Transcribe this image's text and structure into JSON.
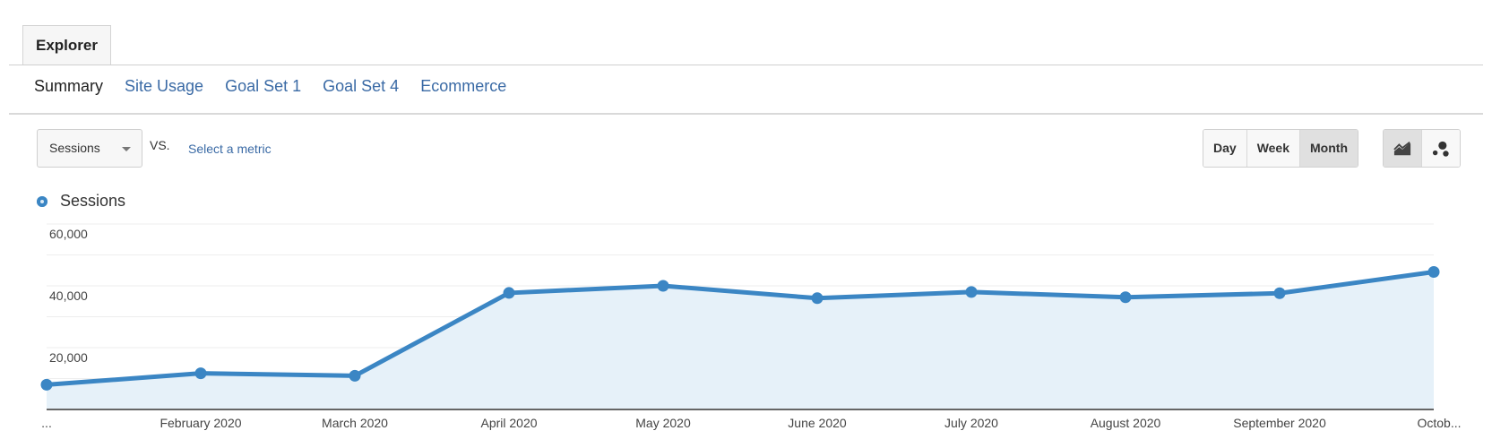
{
  "tabs": [
    {
      "label": "Explorer",
      "active": true
    }
  ],
  "subnav": [
    {
      "label": "Summary",
      "active": true
    },
    {
      "label": "Site Usage",
      "active": false
    },
    {
      "label": "Goal Set 1",
      "active": false
    },
    {
      "label": "Goal Set 4",
      "active": false
    },
    {
      "label": "Ecommerce",
      "active": false
    }
  ],
  "controls": {
    "metric": "Sessions",
    "vs_label": "VS.",
    "compare_link": "Select a metric",
    "period_buttons": [
      {
        "label": "Day",
        "active": false
      },
      {
        "label": "Week",
        "active": false
      },
      {
        "label": "Month",
        "active": true
      }
    ],
    "chart_mode_buttons": [
      {
        "icon": "line-chart-icon",
        "active": true
      },
      {
        "icon": "motion-chart-icon",
        "active": false
      }
    ]
  },
  "legend": {
    "label": "Sessions",
    "color": "#3b86c4"
  },
  "colors": {
    "line": "#3b86c4",
    "area": "#e6f1f9",
    "grid": "#eeeeee",
    "axis": "#666666",
    "link": "#3a6aa5"
  },
  "chart_data": {
    "type": "area",
    "title": "",
    "xlabel": "",
    "ylabel": "Sessions",
    "categories": [
      "...",
      "February 2020",
      "March 2020",
      "April 2020",
      "May 2020",
      "June 2020",
      "July 2020",
      "August 2020",
      "September 2020",
      "Octob..."
    ],
    "series": [
      {
        "name": "Sessions",
        "values": [
          8000,
          11700,
          10900,
          37700,
          40000,
          36000,
          38000,
          36300,
          37600,
          44500
        ]
      }
    ],
    "yticks": [
      "20,000",
      "40,000",
      "60,000"
    ],
    "ylim": [
      0,
      60000
    ],
    "grid": true,
    "legend_position": "top-left"
  }
}
